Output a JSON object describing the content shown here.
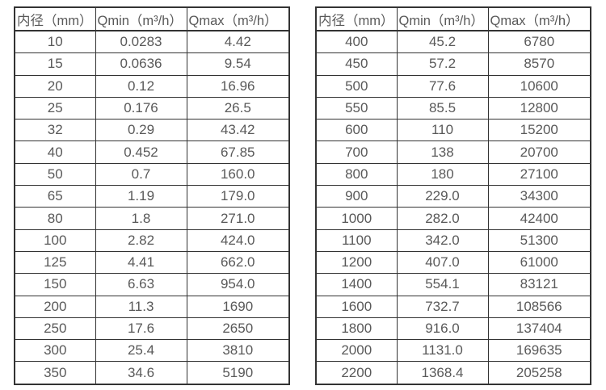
{
  "page": {
    "background": "#ffffff",
    "text_color": "#595959",
    "border_color": "#333333"
  },
  "tables": [
    {
      "name": "flow-table-small-diameter",
      "columns": [
        "内径（mm）",
        "Qmin（m³/h）",
        "Qmax（m³/h）"
      ],
      "rows": [
        [
          "10",
          "0.0283",
          "4.42"
        ],
        [
          "15",
          "0.0636",
          "9.54"
        ],
        [
          "20",
          "0.12",
          "16.96"
        ],
        [
          "25",
          "0.176",
          "26.5"
        ],
        [
          "32",
          "0.29",
          "43.42"
        ],
        [
          "40",
          "0.452",
          "67.85"
        ],
        [
          "50",
          "0.7",
          "160.0"
        ],
        [
          "65",
          "1.19",
          "179.0"
        ],
        [
          "80",
          "1.8",
          "271.0"
        ],
        [
          "100",
          "2.82",
          "424.0"
        ],
        [
          "125",
          "4.41",
          "662.0"
        ],
        [
          "150",
          "6.63",
          "954.0"
        ],
        [
          "200",
          "11.3",
          "1690"
        ],
        [
          "250",
          "17.6",
          "2650"
        ],
        [
          "300",
          "25.4",
          "3810"
        ],
        [
          "350",
          "34.6",
          "5190"
        ]
      ]
    },
    {
      "name": "flow-table-large-diameter",
      "columns": [
        "内径（mm）",
        "Qmin（m³/h）",
        "Qmax（m³/h）"
      ],
      "rows": [
        [
          "400",
          "45.2",
          "6780"
        ],
        [
          "450",
          "57.2",
          "8570"
        ],
        [
          "500",
          "77.6",
          "10600"
        ],
        [
          "550",
          "85.5",
          "12800"
        ],
        [
          "600",
          "110",
          "15200"
        ],
        [
          "700",
          "138",
          "20700"
        ],
        [
          "800",
          "180",
          "27100"
        ],
        [
          "900",
          "229.0",
          "34300"
        ],
        [
          "1000",
          "282.0",
          "42400"
        ],
        [
          "1100",
          "342.0",
          "51300"
        ],
        [
          "1200",
          "407.0",
          "61000"
        ],
        [
          "1400",
          "554.1",
          "83121"
        ],
        [
          "1600",
          "732.7",
          "108566"
        ],
        [
          "1800",
          "916.0",
          "137404"
        ],
        [
          "2000",
          "1131.0",
          "169635"
        ],
        [
          "2200",
          "1368.4",
          "205258"
        ]
      ]
    }
  ]
}
